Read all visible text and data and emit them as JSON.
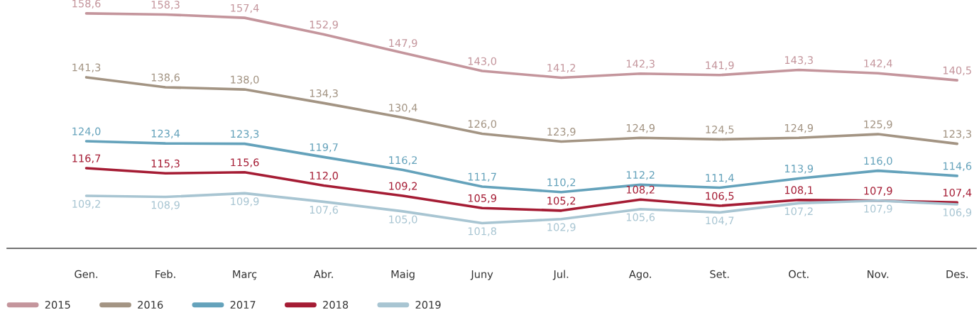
{
  "chart_data": {
    "type": "line",
    "categories": [
      "Gen.",
      "Feb.",
      "Març",
      "Abr.",
      "Maig",
      "Juny",
      "Jul.",
      "Ago.",
      "Set.",
      "Oct.",
      "Nov.",
      "Des."
    ],
    "series": [
      {
        "name": "2015",
        "color": "#c4959c",
        "values": [
          158.6,
          158.3,
          157.4,
          152.9,
          147.9,
          143.0,
          141.2,
          142.3,
          141.9,
          143.3,
          142.4,
          140.5
        ],
        "value_labels": [
          "158,6",
          "158,3",
          "157,4",
          "152,9",
          "147,9",
          "143,0",
          "141,2",
          "142,3",
          "141,9",
          "143,3",
          "142,4",
          "140,5"
        ]
      },
      {
        "name": "2016",
        "color": "#a39483",
        "values": [
          141.3,
          138.6,
          138.0,
          134.3,
          130.4,
          126.0,
          123.9,
          124.9,
          124.5,
          124.9,
          125.9,
          123.3
        ],
        "value_labels": [
          "141,3",
          "138,6",
          "138,0",
          "134,3",
          "130,4",
          "126,0",
          "123,9",
          "124,9",
          "124,5",
          "124,9",
          "125,9",
          "123,3"
        ]
      },
      {
        "name": "2017",
        "color": "#64a2bb",
        "values": [
          124.0,
          123.4,
          123.3,
          119.7,
          116.2,
          111.7,
          110.2,
          112.2,
          111.4,
          113.9,
          116.0,
          114.6
        ],
        "value_labels": [
          "124,0",
          "123,4",
          "123,3",
          "119,7",
          "116,2",
          "111,7",
          "110,2",
          "112,2",
          "111,4",
          "113,9",
          "116,0",
          "114,6"
        ]
      },
      {
        "name": "2018",
        "color": "#a51c34",
        "values": [
          116.7,
          115.3,
          115.6,
          112.0,
          109.2,
          105.9,
          105.2,
          108.2,
          106.5,
          108.1,
          107.9,
          107.4
        ],
        "value_labels": [
          "116,7",
          "115,3",
          "115,6",
          "112,0",
          "109,2",
          "105,9",
          "105,2",
          "108,2",
          "106,5",
          "108,1",
          "107,9",
          "107,4"
        ]
      },
      {
        "name": "2019",
        "color": "#a8c5d2",
        "values": [
          109.2,
          108.9,
          109.9,
          107.6,
          105.0,
          101.8,
          102.9,
          105.6,
          104.7,
          107.2,
          107.9,
          106.9
        ],
        "value_labels": [
          "109,2",
          "108,9",
          "109,9",
          "107,6",
          "105,0",
          "101,8",
          "102,9",
          "105,6",
          "104,7",
          "107,2",
          "107,9",
          "106,9"
        ]
      }
    ],
    "tick_labels": "x",
    "legend": "bottom left",
    "line_style": "solid"
  }
}
